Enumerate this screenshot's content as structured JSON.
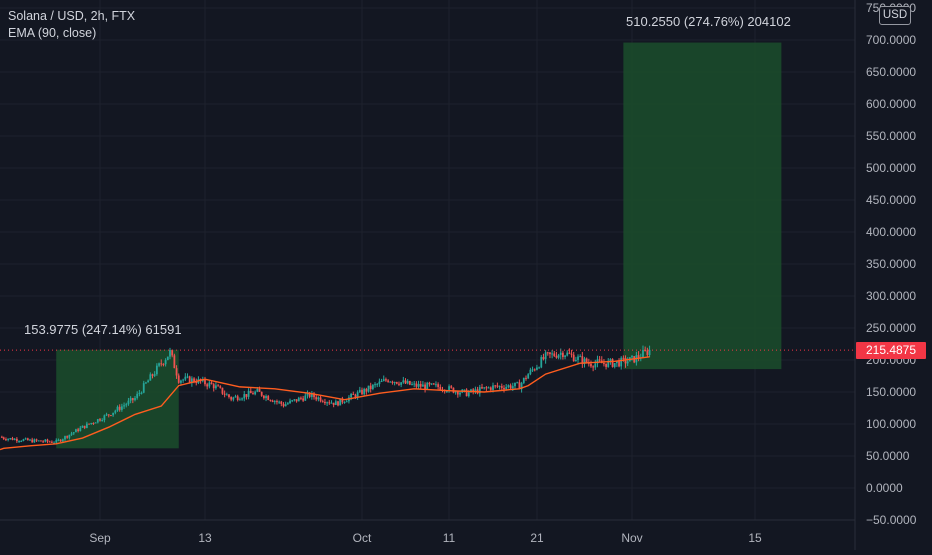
{
  "header": {
    "symbol_line": "Solana / USD, 2h, FTX",
    "indicator_line": "EMA (90, close)"
  },
  "price_axis": {
    "currency": "USD",
    "top_clipped_label": "750.0000",
    "labels": [
      "700.0000",
      "650.0000",
      "600.0000",
      "550.0000",
      "500.0000",
      "450.0000",
      "400.0000",
      "350.0000",
      "300.0000",
      "250.0000",
      "200.0000",
      "150.0000",
      "100.0000",
      "50.0000",
      "0.0000",
      "−50.0000"
    ],
    "last_price": "215.4875"
  },
  "time_axis": {
    "labels": [
      "Sep",
      "13",
      "Oct",
      "11",
      "21",
      "Nov",
      "15"
    ]
  },
  "positions": {
    "first": {
      "label": "153.9775 (247.14%) 61591"
    },
    "second": {
      "label": "510.2550 (274.76%) 204102"
    }
  },
  "colors": {
    "background": "#131722",
    "grid": "#1e222d",
    "candle_up": "#26a69a",
    "candle_down": "#ef5350",
    "ema": "#ff5d1f",
    "last_price": "#f23645",
    "position_fill": "#1b4d2c"
  },
  "chart_data": {
    "type": "candlestick",
    "title": "Solana / USD, 2h, FTX",
    "indicator": "EMA (90, close)",
    "ylim": [
      -50,
      750
    ],
    "x_labels": [
      "Sep",
      "13",
      "Oct",
      "11",
      "21",
      "Nov",
      "15"
    ],
    "last_price": 215.4875,
    "series": [
      {
        "name": "Solana / USD",
        "x": [
          "Aug 21",
          "Aug 24",
          "Aug 27",
          "Aug 30",
          "Sep 2",
          "Sep 5",
          "Sep 8",
          "Sep 9",
          "Sep 10",
          "Sep 12",
          "Sep 14",
          "Sep 16",
          "Sep 19",
          "Sep 22",
          "Sep 25",
          "Sep 28",
          "Oct 1",
          "Oct 4",
          "Oct 7",
          "Oct 10",
          "Oct 13",
          "Oct 16",
          "Oct 19",
          "Oct 20",
          "Oct 22",
          "Oct 24",
          "Oct 27",
          "Oct 30",
          "Nov 1",
          "Nov 3"
        ],
        "close": [
          78,
          74,
          72,
          95,
          115,
          140,
          195,
          212,
          170,
          168,
          160,
          140,
          150,
          130,
          145,
          132,
          150,
          170,
          160,
          158,
          148,
          158,
          160,
          178,
          205,
          212,
          195,
          195,
          200,
          215
        ]
      },
      {
        "name": "EMA (90, close)",
        "x": [
          "Aug 21",
          "Aug 24",
          "Aug 27",
          "Aug 30",
          "Sep 2",
          "Sep 5",
          "Sep 8",
          "Sep 10",
          "Sep 13",
          "Sep 17",
          "Sep 21",
          "Sep 25",
          "Sep 29",
          "Oct 3",
          "Oct 7",
          "Oct 11",
          "Oct 15",
          "Oct 19",
          "Oct 20",
          "Oct 22",
          "Oct 26",
          "Oct 30",
          "Nov 3"
        ],
        "value": [
          62,
          66,
          69,
          78,
          95,
          115,
          128,
          160,
          170,
          158,
          155,
          148,
          138,
          148,
          155,
          152,
          150,
          155,
          160,
          178,
          195,
          198,
          205
        ]
      }
    ],
    "positions": [
      {
        "entry": 62,
        "target": 215.9775,
        "gain": 153.9775,
        "gain_pct": "247.14%",
        "qty": 61591,
        "x_start": "Aug 27",
        "x_end": "Sep 10"
      },
      {
        "entry": 185.745,
        "target": 696,
        "gain": 510.255,
        "gain_pct": "274.76%",
        "qty": 204102,
        "x_start": "Oct 31",
        "x_end": "Nov 18"
      }
    ],
    "grid": true
  }
}
